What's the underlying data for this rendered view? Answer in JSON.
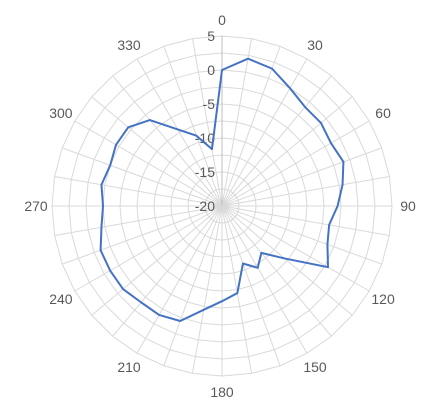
{
  "chart_data": {
    "type": "radar",
    "title": "",
    "angle_labels": [
      "0",
      "30",
      "60",
      "90",
      "120",
      "150",
      "180",
      "210",
      "240",
      "270",
      "300",
      "330"
    ],
    "angle_step_deg": 10,
    "radial_axis": {
      "min": -20,
      "max": 5,
      "major_unit": 5,
      "tick_labels": [
        "-20",
        "-15",
        "-10",
        "-5",
        "0",
        "5"
      ]
    },
    "grid": true,
    "series": [
      {
        "color": "#4472C4",
        "angles": [
          0,
          10,
          20,
          30,
          40,
          50,
          60,
          70,
          80,
          90,
          100,
          110,
          120,
          130,
          140,
          150,
          160,
          170,
          180,
          190,
          200,
          210,
          220,
          230,
          240,
          250,
          260,
          270,
          280,
          290,
          300,
          310,
          320,
          330,
          340,
          350
        ],
        "values": [
          0,
          2,
          1.5,
          0,
          -1,
          -1,
          -1.5,
          -1,
          -2,
          -3,
          -4,
          -3.5,
          -2,
          -8,
          -11,
          -9.5,
          -11,
          -7,
          -6,
          -4.5,
          -2,
          -1.5,
          -1.5,
          -1,
          -1,
          -1,
          -2,
          -2.5,
          -2,
          -2.5,
          -2,
          -2,
          -3.5,
          -7,
          -9,
          -11.5
        ]
      }
    ]
  },
  "page": {
    "background": "#ffffff",
    "grid_color": "#d9d9d9"
  }
}
